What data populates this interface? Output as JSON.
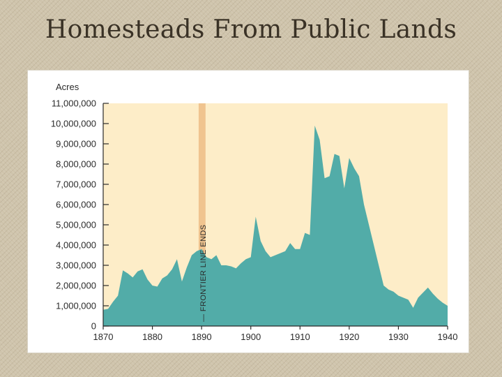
{
  "slide": {
    "title": "Homesteads From Public Lands"
  },
  "chart_data": {
    "type": "area",
    "title": "",
    "ylabel": "Acres",
    "xlabel": "",
    "xlim": [
      1870,
      1940
    ],
    "ylim": [
      0,
      11000000
    ],
    "grid": false,
    "x_ticks": [
      1870,
      1880,
      1890,
      1900,
      1910,
      1920,
      1930,
      1940
    ],
    "x_tick_labels": [
      "1870",
      "1880",
      "1890",
      "1900",
      "1910",
      "1920",
      "1930",
      "1940"
    ],
    "y_ticks": [
      0,
      1000000,
      2000000,
      3000000,
      4000000,
      5000000,
      6000000,
      7000000,
      8000000,
      9000000,
      10000000,
      11000000
    ],
    "y_tick_labels": [
      "0",
      "1,000,000",
      "2,000,000",
      "3,000,000",
      "4,000,000",
      "5,000,000",
      "6,000,000",
      "7,000,000",
      "8,000,000",
      "9,000,000",
      "10,000,000",
      "11,000,000"
    ],
    "series": [
      {
        "color": "#52aca8",
        "x": [
          1870,
          1871,
          1872,
          1873,
          1874,
          1875,
          1876,
          1877,
          1878,
          1879,
          1880,
          1881,
          1882,
          1883,
          1884,
          1885,
          1886,
          1887,
          1888,
          1889,
          1890,
          1891,
          1892,
          1893,
          1894,
          1895,
          1896,
          1897,
          1898,
          1899,
          1900,
          1901,
          1902,
          1903,
          1904,
          1905,
          1906,
          1907,
          1908,
          1909,
          1910,
          1911,
          1912,
          1913,
          1914,
          1915,
          1916,
          1917,
          1918,
          1919,
          1920,
          1921,
          1922,
          1923,
          1924,
          1925,
          1926,
          1927,
          1928,
          1929,
          1930,
          1931,
          1932,
          1933,
          1934,
          1935,
          1936,
          1937,
          1938,
          1939,
          1940
        ],
        "values": [
          800000,
          850000,
          1200000,
          1500000,
          2750000,
          2600000,
          2400000,
          2700000,
          2800000,
          2300000,
          2000000,
          1950000,
          2350000,
          2500000,
          2800000,
          3300000,
          2200000,
          2900000,
          3500000,
          3700000,
          3800000,
          3400000,
          3300000,
          3500000,
          3000000,
          3000000,
          2950000,
          2850000,
          3100000,
          3300000,
          3400000,
          5400000,
          4200000,
          3700000,
          3400000,
          3500000,
          3600000,
          3700000,
          4100000,
          3800000,
          3800000,
          4600000,
          4500000,
          9900000,
          9200000,
          7300000,
          7400000,
          8500000,
          8400000,
          6800000,
          8300000,
          7800000,
          7400000,
          6000000,
          5000000,
          4000000,
          3000000,
          2000000,
          1800000,
          1700000,
          1500000,
          1400000,
          1300000,
          900000,
          1400000,
          1650000,
          1900000,
          1600000,
          1350000,
          1150000,
          1000000
        ]
      }
    ],
    "annotations": [
      {
        "text": "FRONTIER LINE ENDS",
        "x_range": [
          1889.4,
          1890.8
        ],
        "band_color": "#f0c48f"
      }
    ],
    "colors": {
      "plot_background": "#fdedc8",
      "area_fill": "#52aca8",
      "frontier_band": "#f0c48f",
      "axis": "#2a2a2a"
    }
  }
}
